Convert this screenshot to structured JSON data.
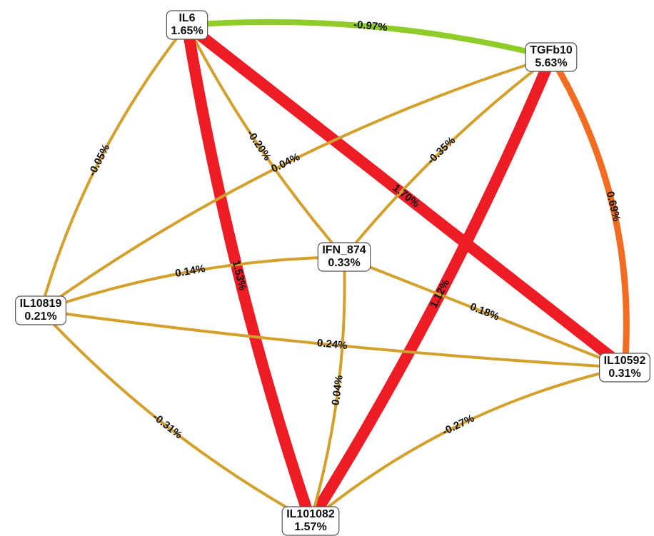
{
  "nodes": [
    {
      "label": "IL6",
      "value": "1.65%"
    },
    {
      "label": "TGFb10",
      "value": "5.63%"
    },
    {
      "label": "IFN_874",
      "value": "0.33%"
    },
    {
      "label": "IL10819",
      "value": "0.21%"
    },
    {
      "label": "IL10592",
      "value": "0.31%"
    },
    {
      "label": "IL101082",
      "value": "1.57%"
    }
  ],
  "edges": [
    {
      "from": "IL6",
      "to": "TGFb10",
      "label": "-0.97%",
      "color": "#8fcc2a"
    },
    {
      "from": "IL6",
      "to": "IL10819",
      "label": "-0.05%",
      "color": "#d4a02c"
    },
    {
      "from": "IL6",
      "to": "IFN_874",
      "label": "-0.20%",
      "color": "#d4a02c"
    },
    {
      "from": "IL6",
      "to": "IL10592",
      "label": "1.70%",
      "color": "#ee1c24"
    },
    {
      "from": "IL6",
      "to": "IL101082",
      "label": "1.53%",
      "color": "#ee1c24"
    },
    {
      "from": "TGFb10",
      "to": "IL10819",
      "label": "0.04%",
      "color": "#d4a02c"
    },
    {
      "from": "TGFb10",
      "to": "IFN_874",
      "label": "-0.35%",
      "color": "#d4a02c"
    },
    {
      "from": "TGFb10",
      "to": "IL101082",
      "label": "1.12%",
      "color": "#ee1c24"
    },
    {
      "from": "TGFb10",
      "to": "IL10592",
      "label": "0.69%",
      "color": "#f26d21"
    },
    {
      "from": "IFN_874",
      "to": "IL10819",
      "label": "0.14%",
      "color": "#d4a02c"
    },
    {
      "from": "IFN_874",
      "to": "IL10592",
      "label": "0.18%",
      "color": "#d4a02c"
    },
    {
      "from": "IFN_874",
      "to": "IL101082",
      "label": "0.04%",
      "color": "#d4a02c"
    },
    {
      "from": "IL10819",
      "to": "IL10592",
      "label": "0.24%",
      "color": "#d4a02c"
    },
    {
      "from": "IL10819",
      "to": "IL101082",
      "label": "-0.31%",
      "color": "#d4a02c"
    },
    {
      "from": "IL10592",
      "to": "IL101082",
      "label": "-0.27%",
      "color": "#d4a02c"
    }
  ]
}
